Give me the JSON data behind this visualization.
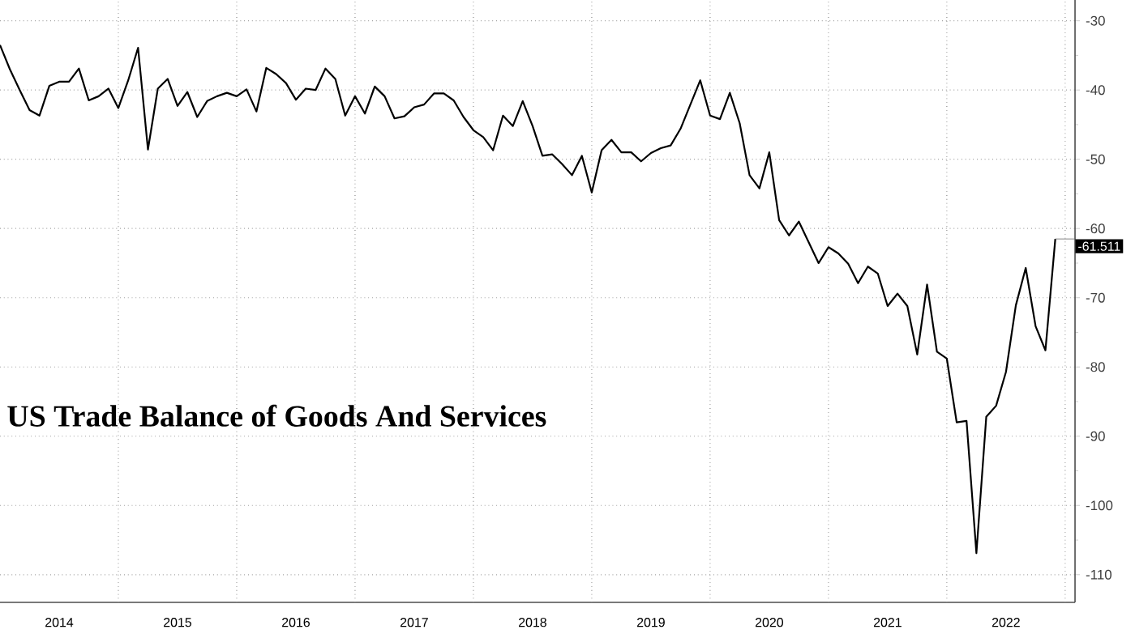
{
  "chart_data": {
    "type": "line",
    "title": "US Trade Balance of Goods And Services",
    "x": [
      "2013-12",
      "2014-01",
      "2014-02",
      "2014-03",
      "2014-04",
      "2014-05",
      "2014-06",
      "2014-07",
      "2014-08",
      "2014-09",
      "2014-10",
      "2014-11",
      "2014-12",
      "2015-01",
      "2015-02",
      "2015-03",
      "2015-04",
      "2015-05",
      "2015-06",
      "2015-07",
      "2015-08",
      "2015-09",
      "2015-10",
      "2015-11",
      "2015-12",
      "2016-01",
      "2016-02",
      "2016-03",
      "2016-04",
      "2016-05",
      "2016-06",
      "2016-07",
      "2016-08",
      "2016-09",
      "2016-10",
      "2016-11",
      "2016-12",
      "2017-01",
      "2017-02",
      "2017-03",
      "2017-04",
      "2017-05",
      "2017-06",
      "2017-07",
      "2017-08",
      "2017-09",
      "2017-10",
      "2017-11",
      "2017-12",
      "2018-01",
      "2018-02",
      "2018-03",
      "2018-04",
      "2018-05",
      "2018-06",
      "2018-07",
      "2018-08",
      "2018-09",
      "2018-10",
      "2018-11",
      "2018-12",
      "2019-01",
      "2019-02",
      "2019-03",
      "2019-04",
      "2019-05",
      "2019-06",
      "2019-07",
      "2019-08",
      "2019-09",
      "2019-10",
      "2019-11",
      "2019-12",
      "2020-01",
      "2020-02",
      "2020-03",
      "2020-04",
      "2020-05",
      "2020-06",
      "2020-07",
      "2020-08",
      "2020-09",
      "2020-10",
      "2020-11",
      "2020-12",
      "2021-01",
      "2021-02",
      "2021-03",
      "2021-04",
      "2021-05",
      "2021-06",
      "2021-07",
      "2021-08",
      "2021-09",
      "2021-10",
      "2021-11",
      "2021-12",
      "2022-01",
      "2022-02",
      "2022-03",
      "2022-04",
      "2022-05",
      "2022-06",
      "2022-07",
      "2022-08",
      "2022-09",
      "2022-10",
      "2022-11"
    ],
    "series": [
      {
        "color": "#000000",
        "values": [
          -33.5,
          -37.0,
          -40.0,
          -42.9,
          -43.7,
          -39.4,
          -38.8,
          -38.8,
          -36.9,
          -41.5,
          -40.9,
          -39.8,
          -42.6,
          -38.6,
          -33.9,
          -48.6,
          -39.8,
          -38.4,
          -42.3,
          -40.3,
          -43.9,
          -41.6,
          -40.9,
          -40.4,
          -40.9,
          -39.9,
          -43.1,
          -36.8,
          -37.7,
          -39.0,
          -41.4,
          -39.8,
          -40.0,
          -36.9,
          -38.4,
          -43.7,
          -40.9,
          -43.4,
          -39.5,
          -40.9,
          -44.1,
          -43.8,
          -42.5,
          -42.1,
          -40.5,
          -40.5,
          -41.5,
          -43.9,
          -45.8,
          -46.8,
          -48.7,
          -43.7,
          -45.2,
          -41.6,
          -45.2,
          -49.5,
          -49.3,
          -50.7,
          -52.3,
          -49.5,
          -54.8,
          -48.7,
          -47.2,
          -49.0,
          -49.0,
          -50.3,
          -49.1,
          -48.4,
          -48.0,
          -45.6,
          -42.1,
          -38.6,
          -43.7,
          -44.2,
          -40.4,
          -44.8,
          -52.3,
          -54.2,
          -49.0,
          -58.8,
          -61.0,
          -59.0,
          -62.0,
          -65.0,
          -62.7,
          -63.6,
          -65.1,
          -67.9,
          -65.5,
          -66.5,
          -71.2,
          -69.4,
          -71.2,
          -78.2,
          -68.1,
          -77.8,
          -78.8,
          -88.0,
          -87.8,
          -106.9,
          -87.2,
          -85.6,
          -80.7,
          -71.1,
          -65.7,
          -74.1,
          -77.6,
          -61.511
        ]
      }
    ],
    "xlim": [
      "2013-12",
      "2023-01"
    ],
    "xticks": [
      {
        "value": "2014-06",
        "label": "2014"
      },
      {
        "value": "2015-06",
        "label": "2015"
      },
      {
        "value": "2016-06",
        "label": "2016"
      },
      {
        "value": "2017-06",
        "label": "2017"
      },
      {
        "value": "2018-06",
        "label": "2018"
      },
      {
        "value": "2019-06",
        "label": "2019"
      },
      {
        "value": "2020-06",
        "label": "2020"
      },
      {
        "value": "2021-06",
        "label": "2021"
      },
      {
        "value": "2022-06",
        "label": "2022"
      },
      {
        "value": "2014-12",
        "label": null
      },
      {
        "value": "2015-12",
        "label": null
      },
      {
        "value": "2016-12",
        "label": null
      },
      {
        "value": "2017-12",
        "label": null
      },
      {
        "value": "2018-12",
        "label": null
      },
      {
        "value": "2019-12",
        "label": null
      },
      {
        "value": "2020-12",
        "label": null
      },
      {
        "value": "2021-12",
        "label": null
      },
      {
        "value": "2022-12",
        "label": null
      }
    ],
    "ylim": [
      -114,
      -27
    ],
    "yticks": [
      -30,
      -40,
      -50,
      -60,
      -70,
      -80,
      -90,
      -100,
      -110
    ],
    "grid": true,
    "marker": "none",
    "line_style": "solid",
    "annotations": [
      {
        "text": "-61.511",
        "x": "2022-11",
        "y": -61.511
      }
    ]
  }
}
